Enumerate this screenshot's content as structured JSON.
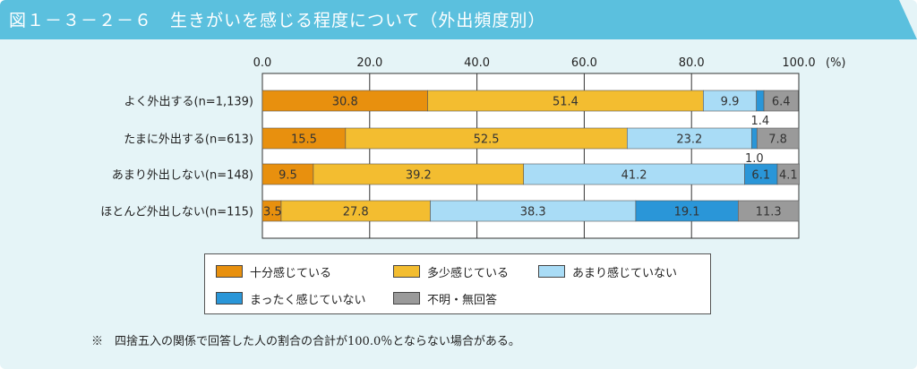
{
  "title": "図１－３－２－６　生きがいを感じる程度について（外出頻度別）",
  "note": "※　四捨五入の関係で回答した人の割合の合計が100.0％とならない場合がある。",
  "colors": {
    "title_bar": "#5bc0de",
    "frame_bg": "#e5f4f7"
  },
  "chart_data": {
    "type": "bar",
    "orientation": "horizontal",
    "stacked": true,
    "xlim": [
      0,
      100
    ],
    "x_ticks": [
      "0.0",
      "20.0",
      "40.0",
      "60.0",
      "80.0",
      "100.0"
    ],
    "x_unit": "(%)",
    "categories": [
      "よく外出する(n=1,139)",
      "たまに外出する(n=613)",
      "あまり外出しない(n=148)",
      "ほとんど外出しない(n=115)"
    ],
    "series": [
      {
        "name": "十分感じている",
        "color": "#e8900e",
        "values": [
          30.8,
          15.5,
          9.5,
          3.5
        ]
      },
      {
        "name": "多少感じている",
        "color": "#f3bd30",
        "values": [
          51.4,
          52.5,
          39.2,
          27.8
        ]
      },
      {
        "name": "あまり感じていない",
        "color": "#a9dcf6",
        "values": [
          9.9,
          23.2,
          41.2,
          38.3
        ]
      },
      {
        "name": "まったく感じていない",
        "color": "#2a96d8",
        "values": [
          1.4,
          1.0,
          6.1,
          19.1
        ]
      },
      {
        "name": "不明・無回答",
        "color": "#9a9a9a",
        "values": [
          6.4,
          7.8,
          4.1,
          11.3
        ]
      }
    ],
    "data_labels": [
      [
        "30.8",
        "51.4",
        "9.9",
        "1.4",
        "6.4"
      ],
      [
        "15.5",
        "52.5",
        "23.2",
        "1.0",
        "7.8"
      ],
      [
        "9.5",
        "39.2",
        "41.2",
        "6.1",
        "4.1"
      ],
      [
        "3.5",
        "27.8",
        "38.3",
        "19.1",
        "11.3"
      ]
    ],
    "grid": true,
    "legend_position": "bottom"
  }
}
